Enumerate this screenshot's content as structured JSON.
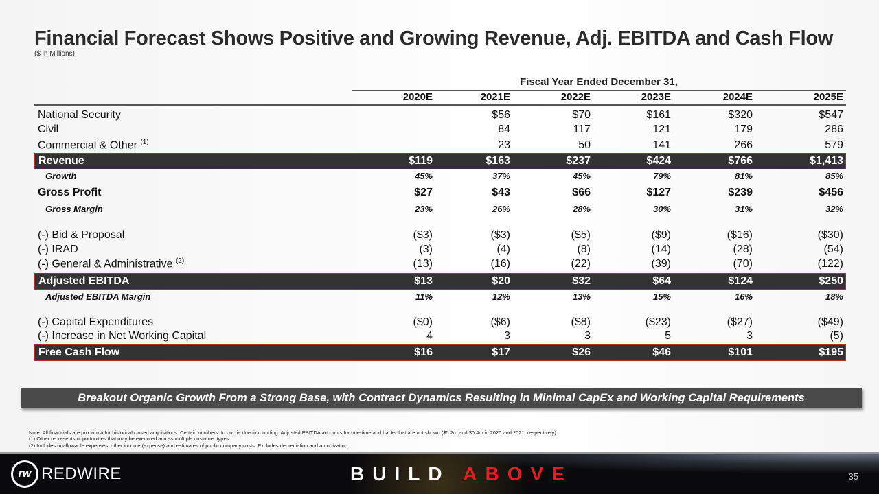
{
  "title": "Financial Forecast Shows Positive and Growing Revenue, Adj. EBITDA and Cash Flow",
  "subtitle": "($ in Millions)",
  "table": {
    "group_header": "Fiscal Year Ended December 31,",
    "years": [
      "2020E",
      "2021E",
      "2022E",
      "2023E",
      "2024E",
      "2025E"
    ],
    "rows": [
      {
        "label": "National Security",
        "values": [
          "",
          "$56",
          "$70",
          "$161",
          "$320",
          "$547"
        ],
        "style": "plain"
      },
      {
        "label": "Civil",
        "values": [
          "",
          "84",
          "117",
          "121",
          "179",
          "286"
        ],
        "style": "plain"
      },
      {
        "label": "Commercial & Other",
        "sup": "(1)",
        "values": [
          "",
          "23",
          "50",
          "141",
          "266",
          "579"
        ],
        "style": "plain"
      },
      {
        "label": "Revenue",
        "values": [
          "$119",
          "$163",
          "$237",
          "$424",
          "$766",
          "$1,413"
        ],
        "style": "band"
      },
      {
        "label": "Growth",
        "values": [
          "45%",
          "37%",
          "45%",
          "79%",
          "81%",
          "85%"
        ],
        "style": "ital"
      },
      {
        "label": "Gross Profit",
        "values": [
          "$27",
          "$43",
          "$66",
          "$127",
          "$239",
          "$456"
        ],
        "style": "bold"
      },
      {
        "label": "Gross Margin",
        "values": [
          "23%",
          "26%",
          "28%",
          "30%",
          "31%",
          "32%"
        ],
        "style": "ital"
      },
      {
        "label": "(-) Bid & Proposal",
        "values": [
          "($3)",
          "($3)",
          "($5)",
          "($9)",
          "($16)",
          "($30)"
        ],
        "style": "plain"
      },
      {
        "label": "(-) IRAD",
        "values": [
          "(3)",
          "(4)",
          "(8)",
          "(14)",
          "(28)",
          "(54)"
        ],
        "style": "plain"
      },
      {
        "label": "(-) General & Administrative",
        "sup": "(2)",
        "values": [
          "(13)",
          "(16)",
          "(22)",
          "(39)",
          "(70)",
          "(122)"
        ],
        "style": "plain"
      },
      {
        "label": "Adjusted EBITDA",
        "values": [
          "$13",
          "$20",
          "$32",
          "$64",
          "$124",
          "$250"
        ],
        "style": "band"
      },
      {
        "label": "Adjusted EBITDA Margin",
        "values": [
          "11%",
          "12%",
          "13%",
          "15%",
          "16%",
          "18%"
        ],
        "style": "ital"
      },
      {
        "label": "(-) Capital Expenditures",
        "values": [
          "($0)",
          "($6)",
          "($8)",
          "($23)",
          "($27)",
          "($49)"
        ],
        "style": "plain"
      },
      {
        "label": "(-) Increase in Net Working Capital",
        "values": [
          "4",
          "3",
          "3",
          "5",
          "3",
          "(5)"
        ],
        "style": "plain"
      },
      {
        "label": "Free Cash Flow",
        "values": [
          "$16",
          "$17",
          "$26",
          "$46",
          "$101",
          "$195"
        ],
        "style": "band"
      }
    ]
  },
  "banner": "Breakout Organic Growth From a Strong Base, with Contract Dynamics Resulting in Minimal CapEx and Working Capital Requirements",
  "notes": [
    "Note: All financials are pro forma for historical closed acquisitions. Certain numbers do not tie due to rounding. Adjusted EBITDA accounts for one-time add backs that are not shown ($5.2m and $0.4m in 2020 and 2021, respectively).",
    "(1) Other represents opportunities that may be executed across multiple customer types.",
    "(2) Includes unallowable expenses, other income (expense) and estimates of public company costs. Excludes depreciation and amortization."
  ],
  "footer": {
    "logo_text": "REDWIRE",
    "tagline_1": "BUILD",
    "tagline_2": "ABOVE",
    "page_number": "35",
    "accent": "#e01e26"
  }
}
